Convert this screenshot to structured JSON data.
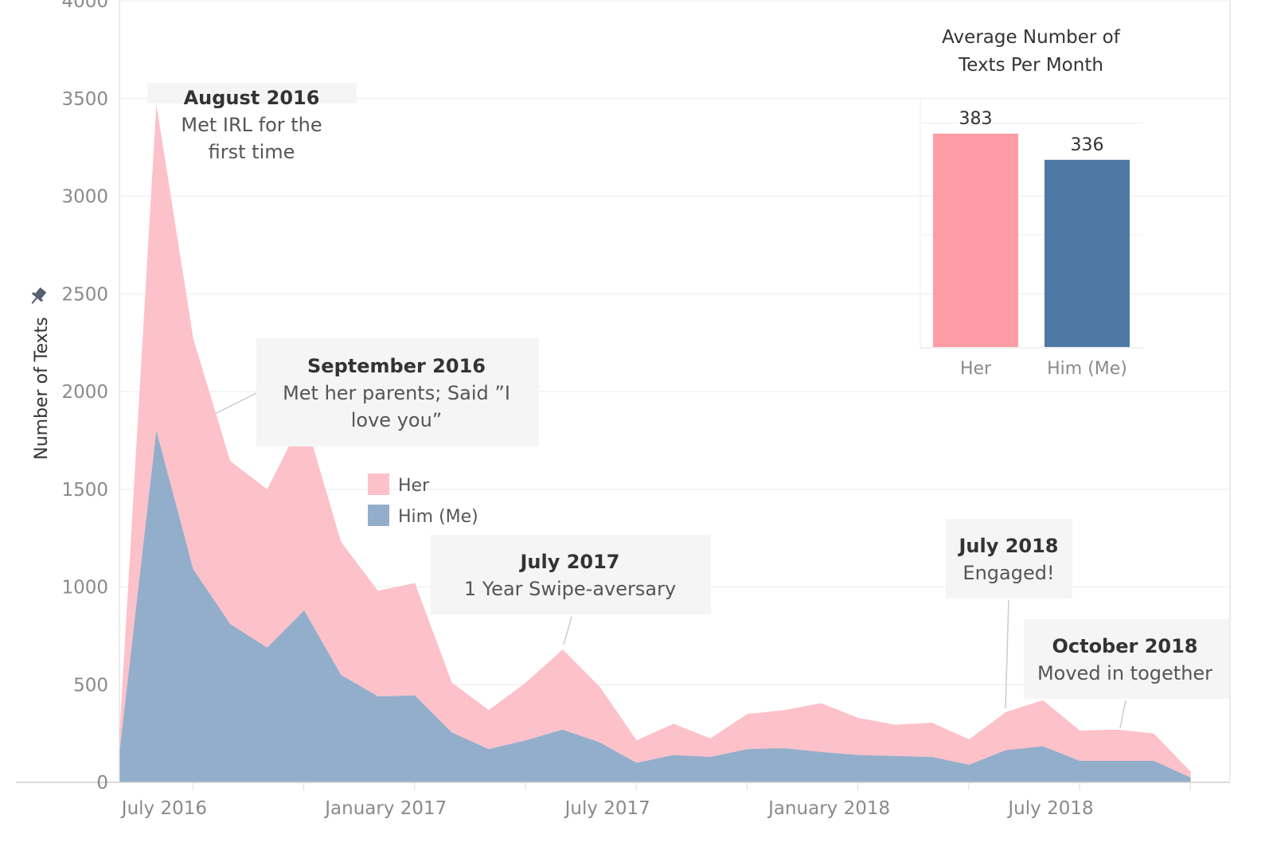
{
  "chart_data": [
    {
      "type": "area",
      "stacked": true,
      "ylabel": "Number of Texts",
      "ylim": [
        0,
        4000
      ],
      "yticks": [
        0,
        500,
        1000,
        1500,
        2000,
        2500,
        3000,
        3500,
        4000
      ],
      "xticks": [
        "July 2016",
        "January 2017",
        "July 2017",
        "January 2018",
        "July 2018"
      ],
      "x": [
        "2016-06",
        "2016-07",
        "2016-08",
        "2016-09",
        "2016-10",
        "2016-11",
        "2016-12",
        "2017-01",
        "2017-02",
        "2017-03",
        "2017-04",
        "2017-05",
        "2017-06",
        "2017-07",
        "2017-08",
        "2017-09",
        "2017-10",
        "2017-11",
        "2017-12",
        "2018-01",
        "2018-02",
        "2018-03",
        "2018-04",
        "2018-05",
        "2018-06",
        "2018-07",
        "2018-08",
        "2018-09",
        "2018-10",
        "2018-11"
      ],
      "grid": true,
      "legend": "middle-left",
      "series": [
        {
          "name": "Him (Me)",
          "color": "#93aecb",
          "values": [
            150,
            1800,
            1090,
            810,
            690,
            880,
            550,
            440,
            445,
            255,
            170,
            215,
            270,
            205,
            100,
            140,
            130,
            170,
            175,
            155,
            140,
            135,
            130,
            90,
            165,
            185,
            110,
            110,
            110,
            25
          ]
        },
        {
          "name": "Her",
          "color": "#fdc1c9",
          "values": [
            90,
            1670,
            1180,
            835,
            810,
            995,
            680,
            540,
            575,
            255,
            200,
            295,
            410,
            285,
            115,
            160,
            95,
            180,
            195,
            250,
            190,
            160,
            175,
            130,
            195,
            235,
            155,
            160,
            140,
            30
          ]
        }
      ],
      "annotations": [
        {
          "title": "August 2016",
          "lines": [
            "Met IRL for the",
            "first time"
          ]
        },
        {
          "title": "September 2016",
          "lines": [
            "Met her parents; Said ”I",
            "love you”"
          ]
        },
        {
          "title": "July 2017",
          "lines": [
            "1 Year Swipe-aversary"
          ]
        },
        {
          "title": "July 2018",
          "lines": [
            "Engaged!"
          ]
        },
        {
          "title": "October 2018",
          "lines": [
            "Moved in together"
          ]
        }
      ]
    },
    {
      "type": "bar",
      "title_lines": [
        "Average Number of",
        "Texts Per Month"
      ],
      "categories": [
        "Her",
        "Him (Me)"
      ],
      "values": [
        383,
        336
      ],
      "colors": [
        "#fe9ca5",
        "#4e79a7"
      ]
    }
  ],
  "pin_icon": "pin-icon"
}
